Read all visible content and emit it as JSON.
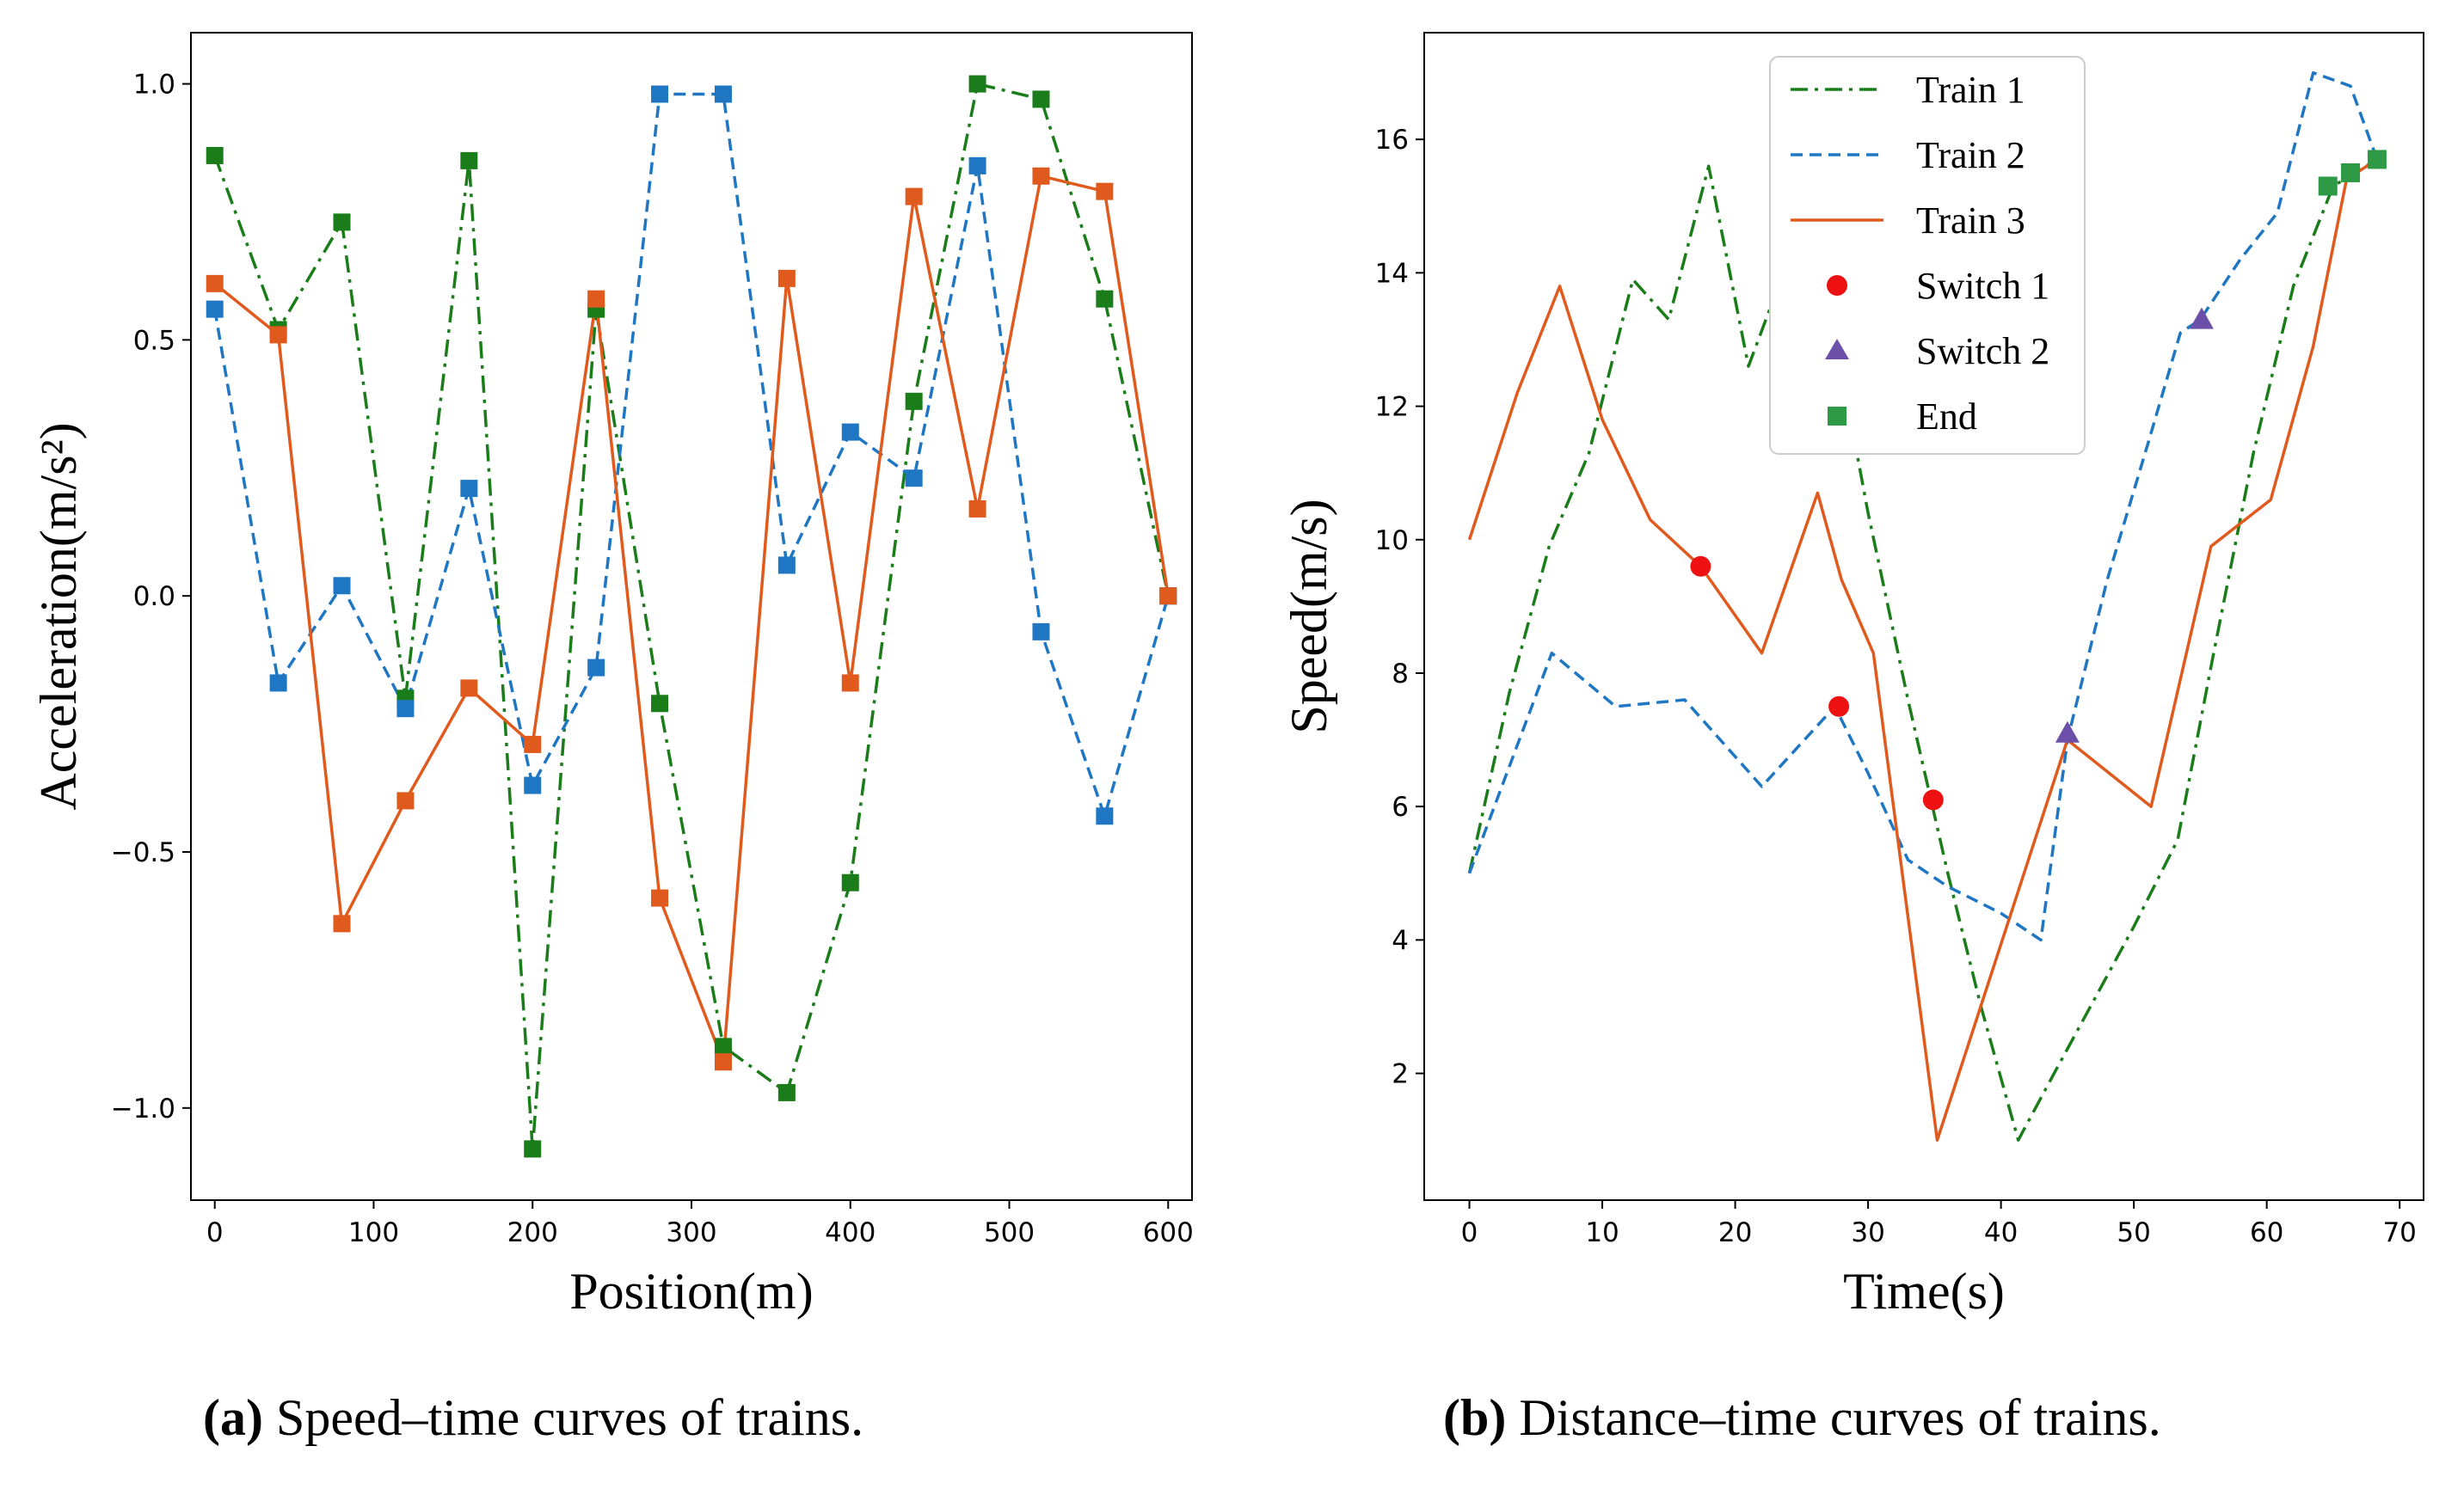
{
  "colors": {
    "train1": "#1a7d1a",
    "train2": "#1f77c4",
    "train3": "#e05a1e",
    "switch1": "#ee1111",
    "switch2": "#6b4fa8",
    "end": "#2e9a46"
  },
  "chart_data": [
    {
      "type": "line",
      "xlabel": "Position(m)",
      "ylabel": "Acceleration(m/s²)",
      "xlim": [
        -15,
        615
      ],
      "ylim": [
        -1.18,
        1.1
      ],
      "xticks": [
        0,
        100,
        200,
        300,
        400,
        500,
        600
      ],
      "xtick_labels": [
        "0",
        "100",
        "200",
        "300",
        "400",
        "500",
        "600"
      ],
      "yticks": [
        -1.0,
        -0.5,
        0.0,
        0.5,
        1.0
      ],
      "ytick_labels": [
        "−1.0",
        "−0.5",
        "0.0",
        "0.5",
        "1.0"
      ],
      "grid": false,
      "legend": "none",
      "series": [
        {
          "key": "train1",
          "style": "dashdot",
          "marker": "square",
          "x": [
            0,
            40,
            80,
            120,
            160,
            200,
            240,
            280,
            320,
            360,
            400,
            440,
            480,
            520,
            560,
            600
          ],
          "y": [
            0.86,
            0.52,
            0.73,
            -0.2,
            0.85,
            -1.08,
            0.56,
            -0.21,
            -0.88,
            -0.97,
            -0.56,
            0.38,
            1.0,
            0.97,
            0.58,
            0.0
          ]
        },
        {
          "key": "train2",
          "style": "dashed",
          "marker": "square",
          "x": [
            0,
            40,
            80,
            120,
            160,
            200,
            240,
            280,
            320,
            360,
            400,
            440,
            480,
            520,
            560,
            600
          ],
          "y": [
            0.56,
            -0.17,
            0.02,
            -0.22,
            0.21,
            -0.37,
            -0.14,
            0.98,
            0.98,
            0.06,
            0.32,
            0.23,
            0.84,
            -0.07,
            -0.43,
            0.0
          ]
        },
        {
          "key": "train3",
          "style": "solid",
          "marker": "square",
          "x": [
            0,
            40,
            80,
            120,
            160,
            200,
            240,
            280,
            320,
            360,
            400,
            440,
            480,
            520,
            560,
            600
          ],
          "y": [
            0.61,
            0.51,
            -0.64,
            -0.4,
            -0.18,
            -0.29,
            0.58,
            -0.59,
            -0.91,
            0.62,
            -0.17,
            0.78,
            0.17,
            0.82,
            0.79,
            0.0
          ]
        }
      ]
    },
    {
      "type": "line",
      "xlabel": "Time(s)",
      "ylabel": "Speed(m/s)",
      "xlim": [
        -3.4,
        71.8
      ],
      "ylim": [
        0.1,
        17.6
      ],
      "xticks": [
        0,
        10,
        20,
        30,
        40,
        50,
        60,
        70
      ],
      "xtick_labels": [
        "0",
        "10",
        "20",
        "30",
        "40",
        "50",
        "60",
        "70"
      ],
      "yticks": [
        2,
        4,
        6,
        8,
        10,
        12,
        14,
        16
      ],
      "ytick_labels": [
        "2",
        "4",
        "6",
        "8",
        "10",
        "12",
        "14",
        "16"
      ],
      "grid": false,
      "legend": "top-center",
      "series": [
        {
          "name": "Train 1",
          "key": "train1",
          "style": "dashdot",
          "x": [
            0,
            3,
            6,
            9,
            12.3,
            15,
            18,
            21,
            24,
            27,
            30,
            33,
            36,
            38.5,
            41.3,
            44,
            47,
            50,
            53.3,
            56,
            59,
            62,
            65,
            68.3
          ],
          "y": [
            5.0,
            7.7,
            9.9,
            11.3,
            13.9,
            13.3,
            15.6,
            12.6,
            14.2,
            13.6,
            10.4,
            7.6,
            5.0,
            3.0,
            1.0,
            2.0,
            3.1,
            4.2,
            5.5,
            8.3,
            11.3,
            13.8,
            15.3,
            15.7
          ]
        },
        {
          "name": "Train 2",
          "key": "train2",
          "style": "dashed",
          "x": [
            0,
            6.2,
            11,
            16.2,
            22,
            27.5,
            30,
            33,
            36,
            40,
            43,
            45,
            48,
            51,
            53.5,
            55,
            58,
            60.8,
            63.5,
            66.3,
            68.3
          ],
          "y": [
            5.0,
            8.3,
            7.5,
            7.6,
            6.3,
            7.5,
            6.5,
            5.2,
            4.8,
            4.4,
            4.0,
            7.0,
            9.4,
            11.4,
            13.1,
            13.3,
            14.2,
            14.9,
            17.0,
            16.8,
            15.7
          ]
        },
        {
          "name": "Train 3",
          "key": "train3",
          "style": "solid",
          "x": [
            0,
            3.6,
            6.8,
            10,
            13.6,
            17.4,
            22,
            26.2,
            28,
            30.4,
            35.2,
            45,
            51.3,
            55.8,
            60.3,
            63.5,
            66,
            68.3
          ],
          "y": [
            10.0,
            12.2,
            13.8,
            11.8,
            10.3,
            9.6,
            8.3,
            10.7,
            9.4,
            8.3,
            1.0,
            7.0,
            6.0,
            9.9,
            10.6,
            12.9,
            15.4,
            15.7
          ]
        }
      ],
      "markers": [
        {
          "name": "Switch 1",
          "key": "switch1",
          "shape": "circle",
          "x": [
            17.4,
            27.8,
            34.9
          ],
          "y": [
            9.6,
            7.5,
            6.1
          ]
        },
        {
          "name": "Switch 2",
          "key": "switch2",
          "shape": "triangle",
          "x": [
            45.0,
            55.1
          ],
          "y": [
            7.1,
            13.3
          ]
        },
        {
          "name": "End",
          "key": "end",
          "shape": "square",
          "x": [
            64.6,
            66.3,
            68.3
          ],
          "y": [
            15.3,
            15.5,
            15.7
          ]
        }
      ]
    }
  ],
  "captions": [
    {
      "label": "(a)",
      "text": "Speed–time curves of trains."
    },
    {
      "label": "(b)",
      "text": "Distance–time curves of trains."
    }
  ]
}
